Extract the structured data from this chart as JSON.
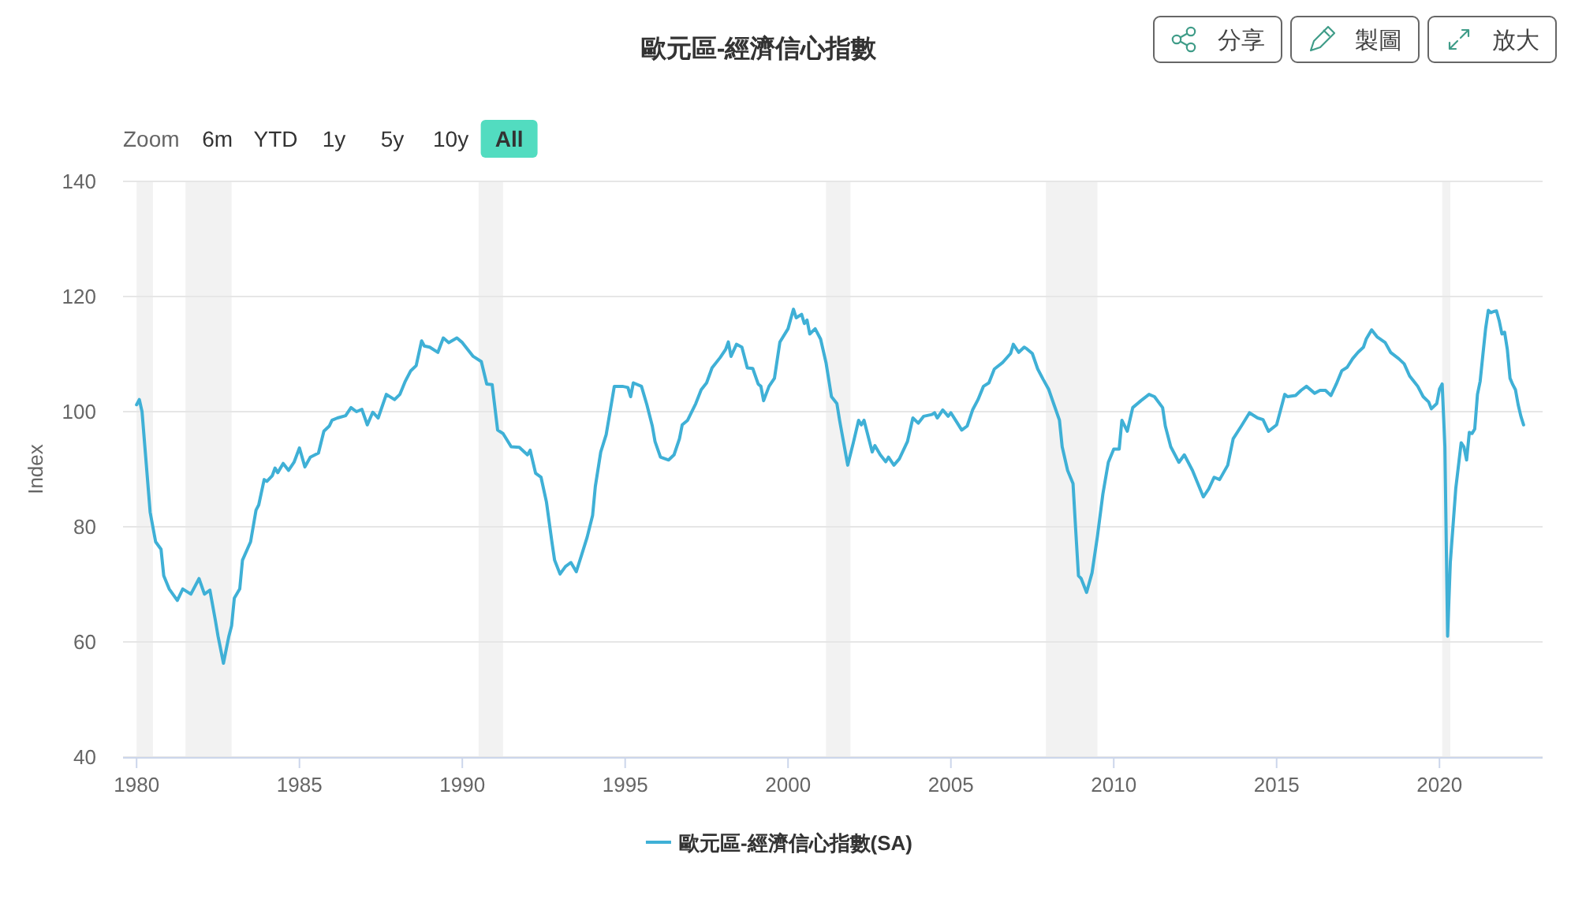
{
  "chart_data": {
    "type": "line",
    "title": "歐元區-經濟信心指數",
    "ylabel": "Index",
    "annotations": [
      "Zoom",
      "6m",
      "YTD",
      "1y",
      "5y",
      "10y",
      "All",
      "分享",
      "製圖",
      "放大"
    ],
    "xlim": [
      "1979-08",
      "2023-03"
    ],
    "xticks": [
      "1980",
      "1985",
      "1990",
      "1995",
      "2000",
      "2005",
      "2010",
      "2015",
      "2020"
    ],
    "ylim": [
      40,
      140
    ],
    "yticks": [
      40,
      60,
      80,
      100,
      120,
      140
    ],
    "grid": "y",
    "legend": "bottom",
    "bands": [
      {
        "axis": "x",
        "from": "1980-01",
        "to": "1980-07",
        "color": "#f2f2f2"
      },
      {
        "axis": "x",
        "from": "1981-07",
        "to": "1982-12",
        "color": "#f2f2f2"
      },
      {
        "axis": "x",
        "from": "1990-07",
        "to": "1991-04",
        "color": "#f2f2f2"
      },
      {
        "axis": "x",
        "from": "2001-03",
        "to": "2001-12",
        "color": "#f2f2f2"
      },
      {
        "axis": "x",
        "from": "2007-12",
        "to": "2009-07",
        "color": "#f2f2f2"
      },
      {
        "axis": "x",
        "from": "2020-02",
        "to": "2020-05",
        "color": "#f2f2f2"
      }
    ],
    "x": [
      "1980-01",
      "1980-02",
      "1980-03",
      "1980-06",
      "1980-08",
      "1980-10",
      "1980-11",
      "1981-01",
      "1981-04",
      "1981-06",
      "1981-09",
      "1981-12",
      "1982-02",
      "1982-04",
      "1982-06",
      "1982-07",
      "1982-09",
      "1982-11",
      "1982-12",
      "1983-01",
      "1983-03",
      "1983-04",
      "1983-07",
      "1983-09",
      "1983-10",
      "1983-12",
      "1984-01",
      "1984-03",
      "1984-04",
      "1984-05",
      "1984-07",
      "1984-09",
      "1984-11",
      "1985-01",
      "1985-03",
      "1985-05",
      "1985-08",
      "1985-10",
      "1985-12",
      "1986-01",
      "1986-03",
      "1986-06",
      "1986-08",
      "1986-10",
      "1986-12",
      "1987-02",
      "1987-04",
      "1987-06",
      "1987-09",
      "1987-12",
      "1988-02",
      "1988-04",
      "1988-06",
      "1988-08",
      "1988-10",
      "1988-11",
      "1989-01",
      "1989-04",
      "1989-06",
      "1989-08",
      "1989-11",
      "1990-01",
      "1990-03",
      "1990-05",
      "1990-08",
      "1990-10",
      "1990-12",
      "1991-02",
      "1991-04",
      "1991-07",
      "1991-10",
      "1992-01",
      "1992-02",
      "1992-04",
      "1992-06",
      "1992-08",
      "1992-10",
      "1992-11",
      "1993-01",
      "1993-03",
      "1993-05",
      "1993-07",
      "1993-09",
      "1993-11",
      "1994-01",
      "1994-02",
      "1994-04",
      "1994-06",
      "1994-09",
      "1994-12",
      "1995-02",
      "1995-03",
      "1995-04",
      "1995-07",
      "1995-09",
      "1995-11",
      "1995-12",
      "1996-02",
      "1996-05",
      "1996-07",
      "1996-09",
      "1996-10",
      "1996-12",
      "1997-03",
      "1997-05",
      "1997-07",
      "1997-09",
      "1997-12",
      "1998-02",
      "1998-03",
      "1998-04",
      "1998-06",
      "1998-08",
      "1998-10",
      "1998-12",
      "1999-02",
      "1999-03",
      "1999-04",
      "1999-06",
      "1999-08",
      "1999-10",
      "2000-01",
      "2000-03",
      "2000-04",
      "2000-06",
      "2000-07",
      "2000-08",
      "2000-09",
      "2000-11",
      "2001-01",
      "2001-03",
      "2001-05",
      "2001-07",
      "2001-08",
      "2001-11",
      "2002-01",
      "2002-03",
      "2002-04",
      "2002-05",
      "2002-08",
      "2002-09",
      "2002-11",
      "2003-01",
      "2003-02",
      "2003-04",
      "2003-06",
      "2003-09",
      "2003-11",
      "2004-01",
      "2004-03",
      "2004-06",
      "2004-07",
      "2004-08",
      "2004-10",
      "2004-12",
      "2005-01",
      "2005-03",
      "2005-05",
      "2005-07",
      "2005-09",
      "2005-11",
      "2006-01",
      "2006-03",
      "2006-05",
      "2006-08",
      "2006-11",
      "2006-12",
      "2007-02",
      "2007-04",
      "2007-05",
      "2007-07",
      "2007-09",
      "2007-11",
      "2008-01",
      "2008-03",
      "2008-05",
      "2008-06",
      "2008-08",
      "2008-10",
      "2008-11",
      "2008-12",
      "2009-01",
      "2009-03",
      "2009-05",
      "2009-07",
      "2009-09",
      "2009-11",
      "2010-01",
      "2010-03",
      "2010-04",
      "2010-06",
      "2010-08",
      "2010-11",
      "2011-02",
      "2011-04",
      "2011-07",
      "2011-08",
      "2011-10",
      "2012-01",
      "2012-03",
      "2012-06",
      "2012-08",
      "2012-10",
      "2012-12",
      "2013-02",
      "2013-04",
      "2013-07",
      "2013-09",
      "2013-12",
      "2014-03",
      "2014-06",
      "2014-08",
      "2014-10",
      "2015-01",
      "2015-04",
      "2015-05",
      "2015-08",
      "2015-10",
      "2015-12",
      "2016-03",
      "2016-05",
      "2016-07",
      "2016-09",
      "2016-11",
      "2017-01",
      "2017-03",
      "2017-05",
      "2017-07",
      "2017-09",
      "2017-10",
      "2017-12",
      "2018-02",
      "2018-05",
      "2018-07",
      "2018-10",
      "2018-12",
      "2019-02",
      "2019-04",
      "2019-05",
      "2019-07",
      "2019-09",
      "2019-10",
      "2019-12",
      "2020-01",
      "2020-02",
      "2020-03",
      "2020-04",
      "2020-05",
      "2020-07",
      "2020-09",
      "2020-10",
      "2020-11",
      "2020-12",
      "2021-01",
      "2021-02",
      "2021-03",
      "2021-04",
      "2021-05",
      "2021-06",
      "2021-07",
      "2021-08",
      "2021-09",
      "2021-10",
      "2021-11",
      "2021-12",
      "2022-01",
      "2022-02",
      "2022-03",
      "2022-04",
      "2022-05",
      "2022-06",
      "2022-07",
      "2022-08"
    ],
    "series": [
      {
        "name": "歐元區-經濟信心指數(SA)",
        "color": "#3fb0d6",
        "values": [
          101.2,
          102.1,
          100.0,
          82.5,
          77.4,
          76.1,
          71.5,
          69.2,
          67.2,
          69.2,
          68.3,
          71.0,
          68.3,
          69.0,
          63.8,
          61.0,
          56.3,
          61.0,
          62.8,
          67.6,
          69.2,
          74.2,
          77.4,
          82.9,
          83.8,
          88.2,
          87.9,
          88.9,
          90.2,
          89.4,
          91.0,
          89.8,
          91.2,
          93.7,
          90.4,
          92.1,
          92.8,
          96.6,
          97.5,
          98.5,
          98.9,
          99.3,
          100.7,
          100.0,
          100.4,
          97.7,
          99.9,
          98.9,
          103.0,
          102.1,
          103.0,
          105.3,
          107.1,
          108.0,
          112.3,
          111.4,
          111.2,
          110.3,
          112.8,
          112.0,
          112.8,
          112.0,
          110.8,
          109.6,
          108.7,
          104.8,
          104.7,
          96.8,
          96.2,
          93.9,
          93.8,
          92.5,
          93.3,
          89.3,
          88.6,
          84.3,
          77.4,
          74.2,
          71.8,
          73.1,
          73.8,
          72.2,
          75.2,
          78.2,
          82.0,
          87.0,
          93.0,
          96.0,
          104.4,
          104.4,
          104.2,
          102.6,
          105.0,
          104.4,
          101.2,
          97.5,
          94.8,
          92.1,
          91.6,
          92.5,
          95.3,
          97.7,
          98.5,
          101.4,
          103.8,
          105.0,
          107.6,
          109.4,
          110.8,
          112.1,
          109.6,
          111.7,
          111.2,
          107.6,
          107.5,
          104.8,
          104.4,
          101.9,
          104.4,
          105.8,
          112.1,
          114.4,
          117.8,
          116.3,
          116.9,
          115.3,
          115.9,
          113.5,
          114.4,
          112.6,
          108.5,
          102.6,
          101.4,
          98.5,
          90.7,
          94.5,
          98.5,
          97.7,
          98.5,
          93.0,
          94.1,
          92.5,
          91.3,
          92.1,
          90.7,
          91.8,
          94.8,
          98.9,
          98.0,
          99.2,
          99.5,
          99.8,
          98.9,
          100.3,
          99.2,
          99.8,
          98.3,
          96.8,
          97.5,
          100.3,
          102.1,
          104.4,
          105.0,
          107.4,
          108.5,
          110.1,
          111.7,
          110.3,
          111.2,
          110.9,
          110.1,
          107.4,
          105.6,
          103.9,
          101.2,
          98.5,
          93.9,
          89.8,
          87.5,
          79.3,
          71.5,
          71.0,
          68.6,
          72.0,
          78.4,
          85.7,
          91.2,
          93.5,
          93.5,
          98.5,
          96.6,
          100.7,
          101.9,
          103.0,
          102.6,
          100.7,
          97.5,
          93.9,
          91.2,
          92.5,
          89.8,
          87.5,
          85.2,
          86.6,
          88.6,
          88.2,
          90.7,
          95.3,
          97.5,
          99.8,
          98.9,
          98.6,
          96.6,
          97.7,
          103.0,
          102.6,
          102.8,
          103.7,
          104.4,
          103.2,
          103.7,
          103.7,
          102.8,
          104.8,
          107.1,
          107.7,
          109.2,
          110.3,
          111.2,
          112.6,
          114.2,
          113.0,
          112.0,
          110.3,
          109.2,
          108.3,
          106.2,
          105.0,
          104.4,
          102.6,
          101.7,
          100.5,
          101.4,
          103.9,
          104.8,
          93.9,
          61.0,
          73.8,
          86.6,
          94.6,
          93.9,
          91.6,
          96.4,
          96.2,
          97.0,
          103.0,
          105.3,
          109.9,
          114.4,
          117.6,
          117.2,
          117.4,
          117.5,
          115.8,
          113.5,
          113.8,
          110.8,
          105.8,
          104.7,
          103.8,
          101.2,
          99.2,
          97.7
        ]
      }
    ]
  }
}
